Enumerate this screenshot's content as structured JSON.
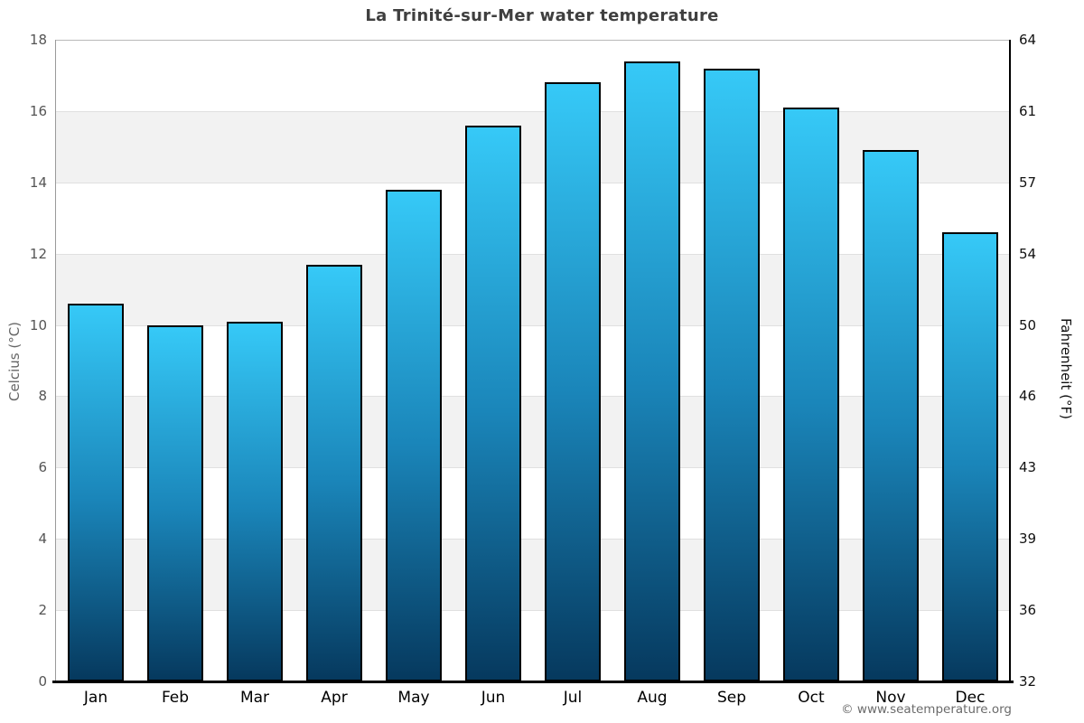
{
  "title": "La Trinité-sur-Mer water temperature",
  "axes": {
    "left_label": "Celcius (°C)",
    "right_label": "Fahrenheit (°F)"
  },
  "footer": {
    "copyright": "© www.seatemperature.org"
  },
  "chart_data": {
    "type": "bar",
    "title": "La Trinité-sur-Mer water temperature",
    "categories": [
      "Jan",
      "Feb",
      "Mar",
      "Apr",
      "May",
      "Jun",
      "Jul",
      "Aug",
      "Sep",
      "Oct",
      "Nov",
      "Dec"
    ],
    "values": [
      10.6,
      10.0,
      10.1,
      11.7,
      13.8,
      15.6,
      16.8,
      17.4,
      17.2,
      16.1,
      14.9,
      12.6
    ],
    "unit": "°C",
    "xlabel": "",
    "ylabel_left": "Celcius (°C)",
    "ylabel_right": "Fahrenheit (°F)",
    "ylim_left": [
      0,
      18
    ],
    "left_ticks": [
      0,
      2,
      4,
      6,
      8,
      10,
      12,
      14,
      16,
      18
    ],
    "right_tick_labels": [
      "32",
      "36",
      "39",
      "43",
      "46",
      "50",
      "54",
      "57",
      "61",
      "64"
    ],
    "grid": "alternating-horizontal-bands",
    "legend": "none",
    "colors": {
      "bar_gradient_top": "#36c9f7",
      "bar_gradient_bottom": "#06395e",
      "bar_border": "#000000",
      "band_gray": "#f2f2f2",
      "background": "#ffffff"
    }
  }
}
